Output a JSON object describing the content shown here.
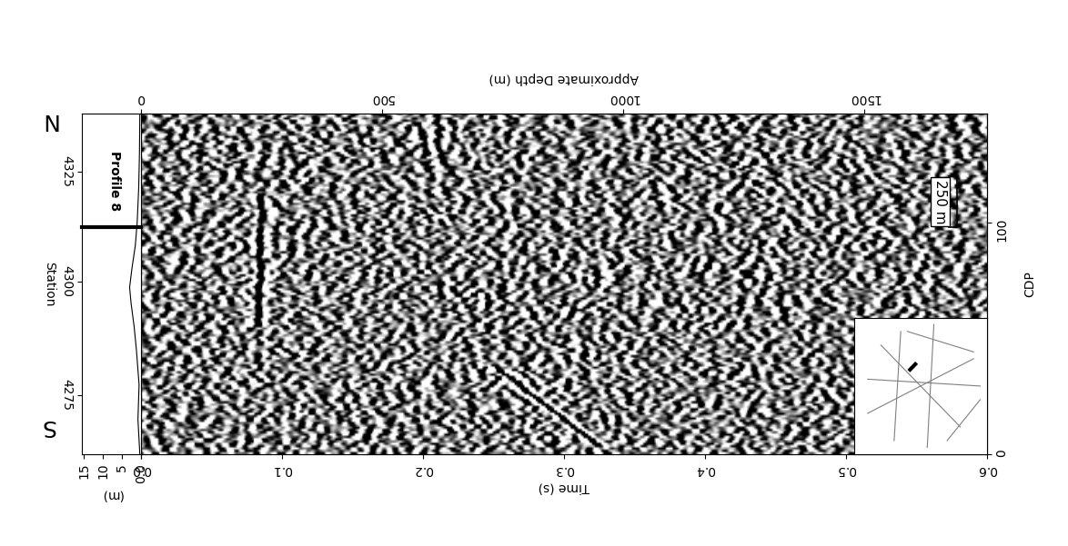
{
  "chart_data": {
    "type": "seismic_section",
    "x_label": "Time (s)",
    "xlim": [
      0,
      0.6
    ],
    "xticks": [
      {
        "value": 0,
        "label": "0.0"
      },
      0.1,
      0.2,
      0.3,
      0.4,
      0.5,
      0.6
    ],
    "depth_label": "Approximate Depth (m)",
    "depth_lim": [
      0,
      1755
    ],
    "depth_ticks": [
      0,
      500,
      1000,
      1500
    ],
    "y_label": "CDP",
    "ylim": [
      0,
      147
    ],
    "yticks": [
      0,
      100
    ],
    "station_label": "Station",
    "station_ticks": [
      {
        "value": 25.5,
        "label": "4275"
      },
      {
        "value": 74.5,
        "label": "4300"
      },
      {
        "value": 122,
        "label": "4325"
      }
    ],
    "elevation_label": "(m)",
    "elevation_lim": [
      15.5,
      0
    ],
    "elevation_ticks": [
      15,
      10,
      5,
      {
        "value": 0,
        "label": "0.0"
      }
    ],
    "elevation": {
      "cdp": [
        0,
        15,
        30,
        45,
        55,
        65,
        72,
        80,
        90,
        100,
        115,
        130,
        147
      ],
      "values": [
        0.3,
        0.8,
        0.5,
        1.2,
        1.8,
        2.6,
        3.0,
        2.4,
        1.5,
        1.0,
        0.6,
        0.4,
        0.3
      ]
    },
    "profile_marker": {
      "label": "Profile 8",
      "cdp": 98
    },
    "south_label": "S",
    "north_label": "N",
    "scale_bar": {
      "label": "250 m",
      "cdp": [
        98,
        120
      ]
    },
    "reflectors": [
      {
        "cdp": [
          55,
          112
        ],
        "time": [
          0.083,
          0.085
        ]
      },
      {
        "cdp": [
          3,
          38
        ],
        "time": [
          0.325,
          0.25
        ]
      }
    ],
    "grid": false
  }
}
